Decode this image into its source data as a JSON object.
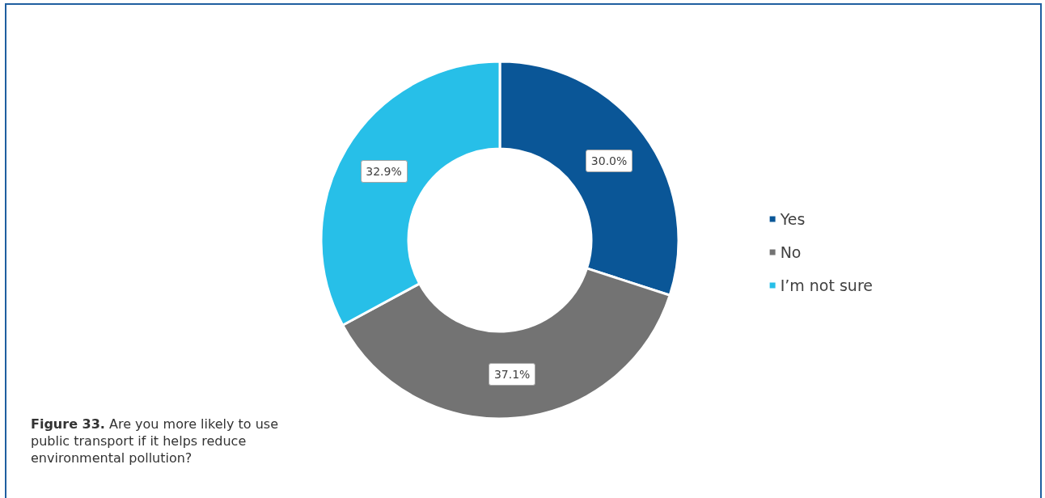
{
  "chart_data": {
    "type": "donut",
    "categories": [
      "Yes",
      "No",
      "I’m not sure"
    ],
    "values": [
      30.0,
      37.1,
      32.9
    ],
    "colors": [
      "#0a5697",
      "#737373",
      "#27bfe8"
    ],
    "value_labels": [
      "30.0%",
      "37.1%",
      "32.9%"
    ],
    "legend": "right",
    "annotations": [
      "Figure 33. Are you more likely to use public transport if it helps reduce environmental pollution?"
    ]
  }
}
